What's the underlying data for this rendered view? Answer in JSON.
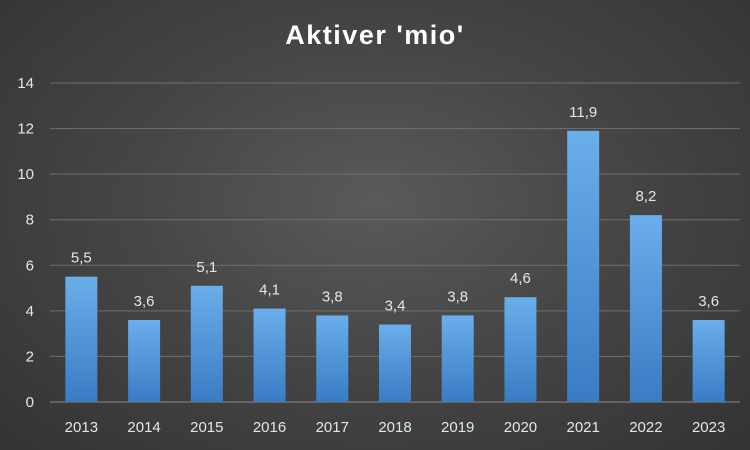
{
  "chart_data": {
    "type": "bar",
    "title": "Aktiver 'mio'",
    "xlabel": "",
    "ylabel": "",
    "categories": [
      "2013",
      "2014",
      "2015",
      "2016",
      "2017",
      "2018",
      "2019",
      "2020",
      "2021",
      "2022",
      "2023"
    ],
    "values": [
      5.5,
      3.6,
      5.1,
      4.1,
      3.8,
      3.4,
      3.8,
      4.6,
      11.9,
      8.2,
      3.6
    ],
    "data_labels": [
      "5,5",
      "3,6",
      "5,1",
      "4,1",
      "3,8",
      "3,4",
      "3,8",
      "4,6",
      "11,9",
      "8,2",
      "3,6"
    ],
    "ylim": [
      0,
      14
    ],
    "yticks": [
      0,
      2,
      4,
      6,
      8,
      10,
      12,
      14
    ],
    "grid": true,
    "legend": "none",
    "colors": {
      "bar_top": "#6aaeea",
      "bar_bottom": "#3a7cc4",
      "background": "#454545"
    }
  }
}
